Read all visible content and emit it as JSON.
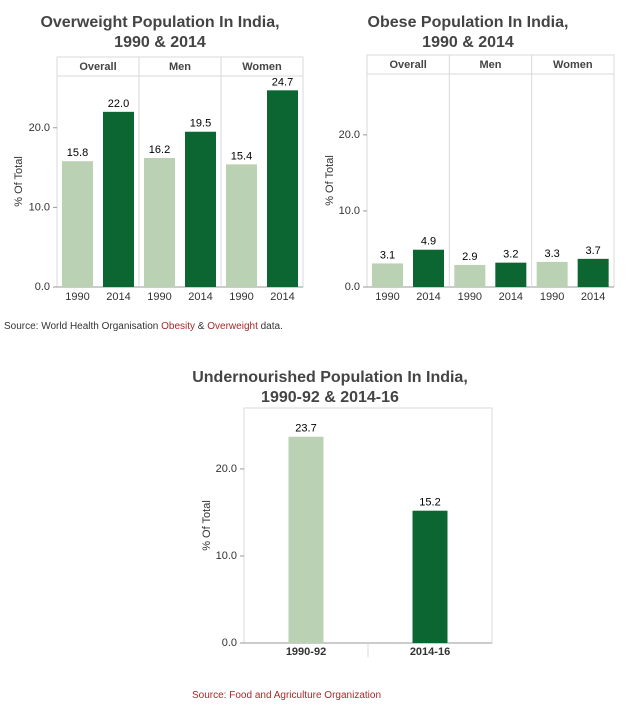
{
  "colors": {
    "light": "#bbd1b4",
    "dark": "#0b6631",
    "source_link": "#a52a2a"
  },
  "chart_data": [
    {
      "type": "bar",
      "title_lines": [
        "Overweight Population In India,",
        "1990 & 2014"
      ],
      "ylabel": "% Of Total",
      "ylim": [
        0,
        26.5
      ],
      "yticks": [
        "0.0",
        "10.0",
        "20.0"
      ],
      "groups": [
        "Overall",
        "Men",
        "Women"
      ],
      "categories": [
        "1990",
        "2014"
      ],
      "series": [
        {
          "values": [
            15.8,
            22.0
          ],
          "labels": [
            "15.8",
            "22.0"
          ]
        },
        {
          "values": [
            16.2,
            19.5
          ],
          "labels": [
            "16.2",
            "19.5"
          ]
        },
        {
          "values": [
            15.4,
            24.7
          ],
          "labels": [
            "15.4",
            "24.7"
          ]
        }
      ]
    },
    {
      "type": "bar",
      "title_lines": [
        "Obese Population In India,",
        "1990 & 2014"
      ],
      "ylabel": "% Of Total",
      "ylim": [
        0,
        28
      ],
      "yticks": [
        "0.0",
        "10.0",
        "20.0"
      ],
      "groups": [
        "Overall",
        "Men",
        "Women"
      ],
      "categories": [
        "1990",
        "2014"
      ],
      "series": [
        {
          "values": [
            3.1,
            4.9
          ],
          "labels": [
            "3.1",
            "4.9"
          ]
        },
        {
          "values": [
            2.9,
            3.2
          ],
          "labels": [
            "2.9",
            "3.2"
          ]
        },
        {
          "values": [
            3.3,
            3.7
          ],
          "labels": [
            "3.3",
            "3.7"
          ]
        }
      ]
    },
    {
      "type": "bar",
      "title_lines": [
        "Undernourished Population In India,",
        "1990-92 & 2014-16"
      ],
      "ylabel": "% Of Total",
      "ylim": [
        0,
        27
      ],
      "yticks": [
        "0.0",
        "10.0",
        "20.0"
      ],
      "categories": [
        "1990-92",
        "2014-16"
      ],
      "values": [
        23.7,
        15.2
      ],
      "labels": [
        "23.7",
        "15.2"
      ]
    }
  ],
  "sources": {
    "top": {
      "prefix": "Source: World Health Organisation ",
      "link1": "Obesity",
      "mid": " & ",
      "link2": "Overweight",
      "suffix": " data."
    },
    "bottom": {
      "prefix": "Source: ",
      "link": "Food and Agriculture Organization"
    }
  }
}
